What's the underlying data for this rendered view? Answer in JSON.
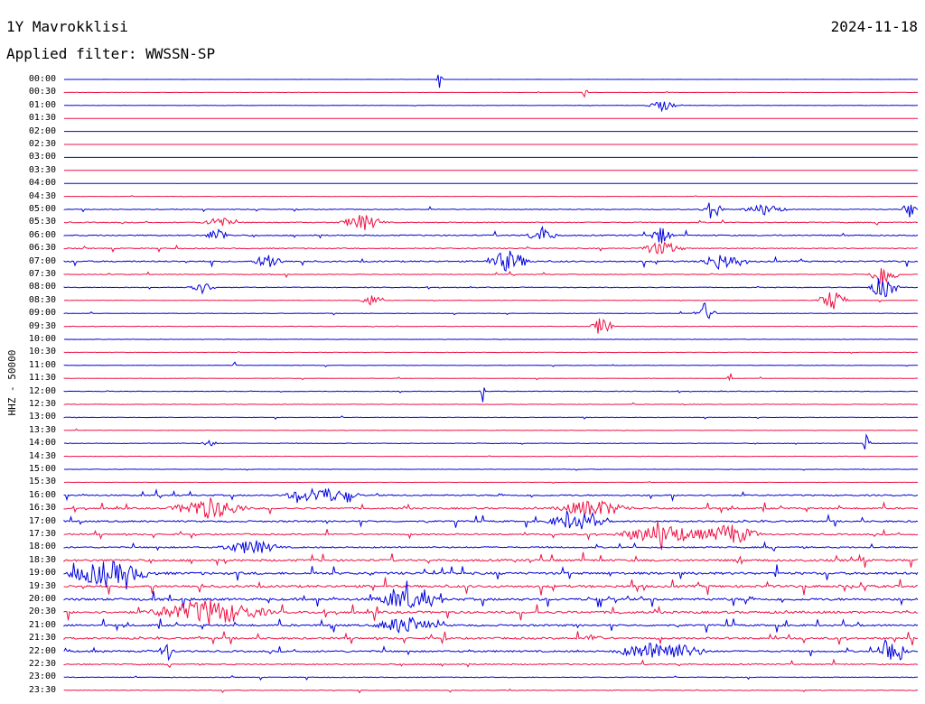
{
  "header": {
    "station": "1Y Mavrokklisi",
    "date": "2024-11-18",
    "filter": "Applied filter: WWSSN-SP"
  },
  "channel_label": "HHZ - 50000",
  "colors": {
    "even": "#0000dd",
    "odd": "#ee1144"
  },
  "time_labels": [
    "00:00",
    "00:30",
    "01:00",
    "01:30",
    "02:00",
    "02:30",
    "03:00",
    "03:30",
    "04:00",
    "04:30",
    "05:00",
    "05:30",
    "06:00",
    "06:30",
    "07:00",
    "07:30",
    "08:00",
    "08:30",
    "09:00",
    "09:30",
    "10:00",
    "10:30",
    "11:00",
    "11:30",
    "12:00",
    "12:30",
    "13:00",
    "13:30",
    "14:00",
    "14:30",
    "15:00",
    "15:30",
    "16:00",
    "16:30",
    "17:00",
    "17:30",
    "18:00",
    "18:30",
    "19:00",
    "19:30",
    "20:00",
    "20:30",
    "21:00",
    "21:30",
    "22:00",
    "22:30",
    "23:00",
    "23:30"
  ],
  "trace_activity": {
    "noise": [
      0.05,
      0.1,
      0.15,
      0.03,
      0.02,
      0.02,
      0.03,
      0.02,
      0.04,
      0.1,
      0.3,
      0.4,
      0.5,
      0.4,
      0.6,
      0.3,
      0.3,
      0.2,
      0.2,
      0.2,
      0.15,
      0.15,
      0.2,
      0.15,
      0.25,
      0.2,
      0.2,
      0.15,
      0.25,
      0.15,
      0.15,
      0.1,
      0.6,
      0.7,
      0.7,
      0.6,
      0.6,
      0.9,
      1.0,
      1.0,
      1.0,
      1.0,
      0.8,
      0.8,
      0.7,
      0.5,
      0.3,
      0.3
    ],
    "bursts": [
      {
        "trace": 0,
        "t": 0.44,
        "amp": 10,
        "w": 0.004
      },
      {
        "trace": 1,
        "t": 0.61,
        "amp": 8,
        "w": 0.004
      },
      {
        "trace": 2,
        "t": 0.7,
        "amp": 6,
        "w": 0.02
      },
      {
        "trace": 10,
        "t": 0.76,
        "amp": 12,
        "w": 0.015
      },
      {
        "trace": 10,
        "t": 0.82,
        "amp": 6,
        "w": 0.03
      },
      {
        "trace": 10,
        "t": 0.99,
        "amp": 10,
        "w": 0.01
      },
      {
        "trace": 11,
        "t": 0.18,
        "amp": 7,
        "w": 0.02
      },
      {
        "trace": 11,
        "t": 0.35,
        "amp": 9,
        "w": 0.03
      },
      {
        "trace": 12,
        "t": 0.18,
        "amp": 9,
        "w": 0.015
      },
      {
        "trace": 12,
        "t": 0.56,
        "amp": 9,
        "w": 0.02
      },
      {
        "trace": 12,
        "t": 0.7,
        "amp": 10,
        "w": 0.015
      },
      {
        "trace": 13,
        "t": 0.7,
        "amp": 8,
        "w": 0.03
      },
      {
        "trace": 14,
        "t": 0.24,
        "amp": 9,
        "w": 0.02
      },
      {
        "trace": 14,
        "t": 0.52,
        "amp": 12,
        "w": 0.03
      },
      {
        "trace": 14,
        "t": 0.77,
        "amp": 9,
        "w": 0.03
      },
      {
        "trace": 15,
        "t": 0.96,
        "amp": 14,
        "w": 0.02
      },
      {
        "trace": 16,
        "t": 0.16,
        "amp": 7,
        "w": 0.02
      },
      {
        "trace": 16,
        "t": 0.96,
        "amp": 14,
        "w": 0.02
      },
      {
        "trace": 17,
        "t": 0.36,
        "amp": 7,
        "w": 0.015
      },
      {
        "trace": 17,
        "t": 0.9,
        "amp": 12,
        "w": 0.02
      },
      {
        "trace": 18,
        "t": 0.75,
        "amp": 12,
        "w": 0.015
      },
      {
        "trace": 19,
        "t": 0.63,
        "amp": 12,
        "w": 0.015
      },
      {
        "trace": 22,
        "t": 0.2,
        "amp": 8,
        "w": 0.003
      },
      {
        "trace": 23,
        "t": 0.78,
        "amp": 12,
        "w": 0.003
      },
      {
        "trace": 24,
        "t": 0.49,
        "amp": 14,
        "w": 0.003
      },
      {
        "trace": 28,
        "t": 0.17,
        "amp": 5,
        "w": 0.01
      },
      {
        "trace": 28,
        "t": 0.94,
        "amp": 10,
        "w": 0.006
      },
      {
        "trace": 32,
        "t": 0.3,
        "amp": 9,
        "w": 0.05
      },
      {
        "trace": 33,
        "t": 0.17,
        "amp": 12,
        "w": 0.05
      },
      {
        "trace": 33,
        "t": 0.62,
        "amp": 10,
        "w": 0.05
      },
      {
        "trace": 34,
        "t": 0.6,
        "amp": 10,
        "w": 0.04
      },
      {
        "trace": 35,
        "t": 0.7,
        "amp": 12,
        "w": 0.06
      },
      {
        "trace": 35,
        "t": 0.78,
        "amp": 12,
        "w": 0.04
      },
      {
        "trace": 36,
        "t": 0.22,
        "amp": 8,
        "w": 0.04
      },
      {
        "trace": 38,
        "t": 0.05,
        "amp": 14,
        "w": 0.06
      },
      {
        "trace": 40,
        "t": 0.4,
        "amp": 12,
        "w": 0.04
      },
      {
        "trace": 41,
        "t": 0.17,
        "amp": 14,
        "w": 0.08
      },
      {
        "trace": 42,
        "t": 0.4,
        "amp": 10,
        "w": 0.04
      },
      {
        "trace": 43,
        "t": 0.62,
        "amp": 9,
        "w": 0.01
      },
      {
        "trace": 44,
        "t": 0.12,
        "amp": 12,
        "w": 0.01
      },
      {
        "trace": 44,
        "t": 0.7,
        "amp": 12,
        "w": 0.06
      },
      {
        "trace": 44,
        "t": 0.97,
        "amp": 18,
        "w": 0.02
      }
    ]
  }
}
